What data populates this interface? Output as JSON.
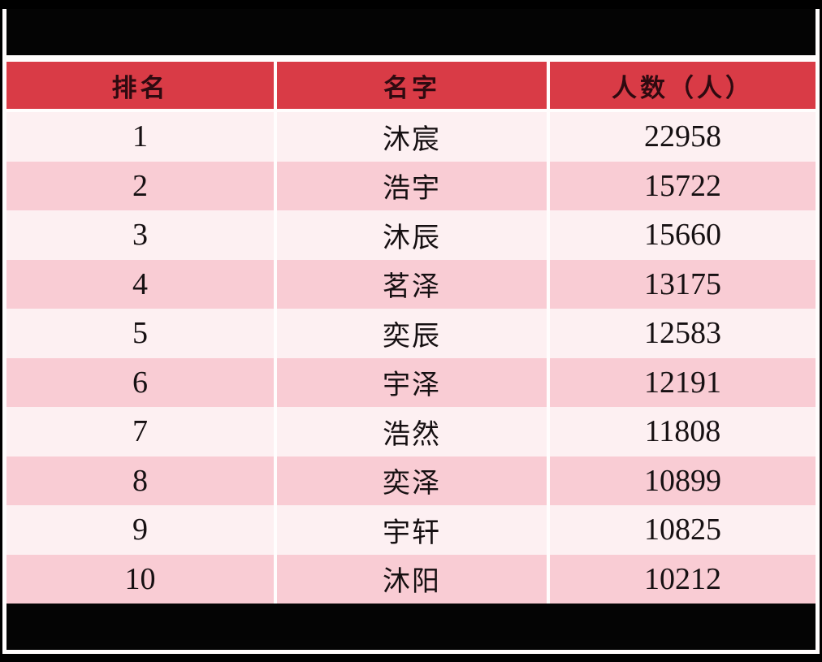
{
  "chart_data": {
    "type": "table",
    "title": "",
    "columns": [
      "排名",
      "名字",
      "人数（人）"
    ],
    "rows": [
      [
        1,
        "沐宸",
        22958
      ],
      [
        2,
        "浩宇",
        15722
      ],
      [
        3,
        "沐辰",
        15660
      ],
      [
        4,
        "茗泽",
        13175
      ],
      [
        5,
        "奕辰",
        12583
      ],
      [
        6,
        "宇泽",
        12191
      ],
      [
        7,
        "浩然",
        11808
      ],
      [
        8,
        "奕泽",
        10899
      ],
      [
        9,
        "宇轩",
        10825
      ],
      [
        10,
        "沐阳",
        10212
      ]
    ]
  },
  "table": {
    "headers": [
      "排名",
      "名字",
      "人数（人）"
    ],
    "rows": [
      {
        "rank": "1",
        "name": "沐宸",
        "count": "22958"
      },
      {
        "rank": "2",
        "name": "浩宇",
        "count": "15722"
      },
      {
        "rank": "3",
        "name": "沐辰",
        "count": "15660"
      },
      {
        "rank": "4",
        "name": "茗泽",
        "count": "13175"
      },
      {
        "rank": "5",
        "name": "奕辰",
        "count": "12583"
      },
      {
        "rank": "6",
        "name": "宇泽",
        "count": "12191"
      },
      {
        "rank": "7",
        "name": "浩然",
        "count": "11808"
      },
      {
        "rank": "8",
        "name": "奕泽",
        "count": "10899"
      },
      {
        "rank": "9",
        "name": "宇轩",
        "count": "10825"
      },
      {
        "rank": "10",
        "name": "沐阳",
        "count": "10212"
      }
    ]
  },
  "colors": {
    "header_bg": "#d93b46",
    "header_text": "#2e0a10",
    "row_light": "#fdf0f2",
    "row_alt": "#f9ccd4",
    "band": "#000000",
    "cell_text": "#161012"
  }
}
